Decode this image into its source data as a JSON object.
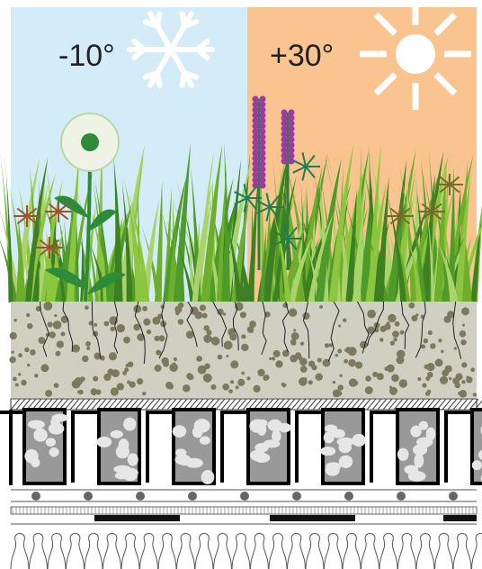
{
  "panels": [
    {
      "label": "-10°"
    },
    {
      "label": "+30°"
    }
  ]
}
